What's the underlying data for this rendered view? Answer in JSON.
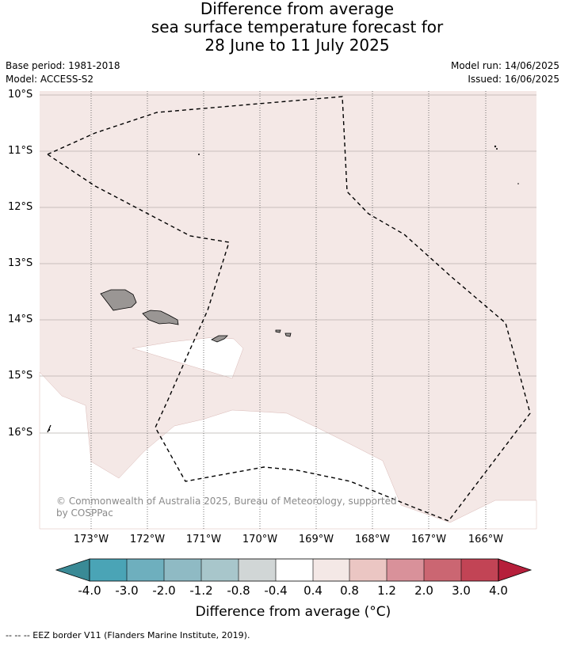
{
  "title": {
    "line1": "Difference from average",
    "line2": "sea surface temperature forecast for",
    "line3": "28 June to 11 July 2025"
  },
  "meta": {
    "base_period": "Base period: 1981-2018",
    "model": "Model: ACCESS-S2",
    "model_run": "Model run: 14/06/2025",
    "issued": "Issued: 16/06/2025"
  },
  "map": {
    "lat_labels": [
      "10°S",
      "11°S",
      "12°S",
      "13°S",
      "14°S",
      "15°S",
      "16°S"
    ],
    "lon_labels": [
      "173°W",
      "172°W",
      "171°W",
      "170°W",
      "169°W",
      "168°W",
      "167°W",
      "166°W"
    ],
    "colors": {
      "anomaly_0_4_to_0_8": "#f4e8e6",
      "near_average": "#ffffff",
      "land": "#9a9694",
      "eez_border": "#000000"
    },
    "copyright": "© Commonwealth of Australia 2025, Bureau of Meteorology, supported by COSPPac"
  },
  "colorbar": {
    "labels": [
      "-4.0",
      "-3.0",
      "-2.0",
      "-1.2",
      "-0.8",
      "-0.4",
      "0.4",
      "0.8",
      "1.2",
      "2.0",
      "3.0",
      "4.0"
    ],
    "colors": [
      "#3a8a96",
      "#4aa4b6",
      "#6eafbe",
      "#8fbac4",
      "#a8c6cb",
      "#d1d6d6",
      "#ffffff",
      "#f4e8e6",
      "#ebc6c3",
      "#d9919a",
      "#cb6672",
      "#c24455",
      "#b61f3b"
    ],
    "title": "Difference from average (°C)"
  },
  "legend": {
    "text": "-- -- -- EEZ border V11 (Flanders Marine Institute, 2019)."
  }
}
